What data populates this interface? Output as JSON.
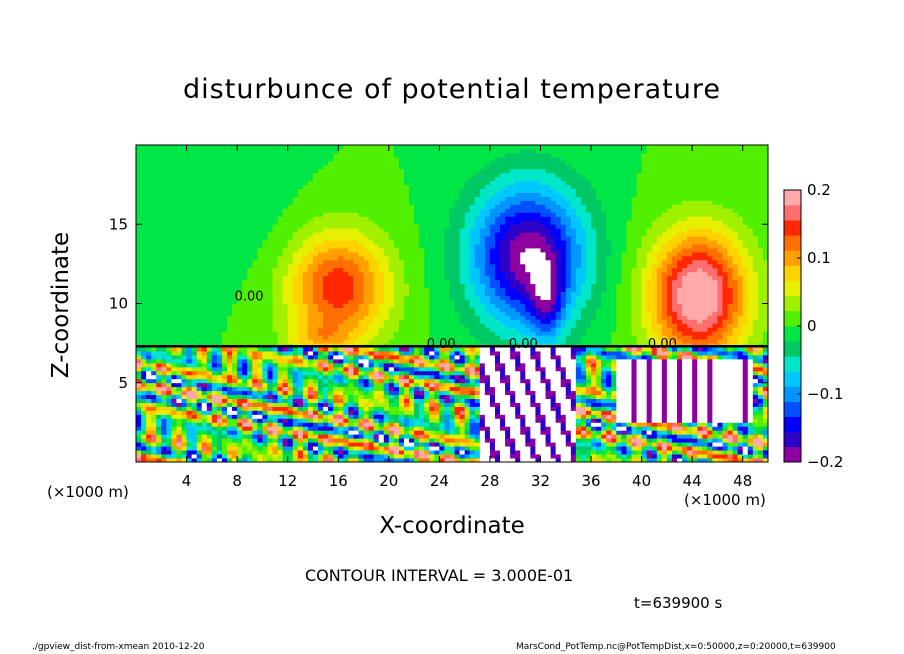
{
  "chart_data": {
    "type": "heatmap",
    "title": "disturbunce of potential temperature",
    "xlabel": "X-coordinate",
    "ylabel": "Z-coordinate",
    "x_unit_label": "(×1000 m)",
    "x_ticks": [
      4,
      8,
      12,
      16,
      20,
      24,
      28,
      32,
      36,
      40,
      44,
      48
    ],
    "y_ticks": [
      5,
      10,
      15
    ],
    "xlim": [
      0,
      50
    ],
    "ylim": [
      0,
      20
    ],
    "colorbar": {
      "ticks": [
        0.2,
        0.1,
        0,
        -0.1,
        -0.2
      ],
      "tick_labels": [
        "0.2",
        "0.1",
        "0",
        "−0.1",
        "−0.2"
      ],
      "range": [
        -0.2,
        0.2
      ],
      "colors": [
        "#8c00a0",
        "#2f00c8",
        "#0000ff",
        "#0050ff",
        "#0096ff",
        "#00c8ff",
        "#00e6c8",
        "#00c864",
        "#00e646",
        "#50f000",
        "#a0f000",
        "#e6f000",
        "#ffd200",
        "#ffa000",
        "#ff6e00",
        "#ff2800",
        "#ff6e6e",
        "#ffaaaa"
      ]
    },
    "contour_labels": [
      {
        "x": 7.8,
        "z": 10.2,
        "text": "0.00"
      },
      {
        "x": 23.0,
        "z": 7.2,
        "text": "0.00"
      },
      {
        "x": 29.5,
        "z": 7.2,
        "text": "0.00"
      },
      {
        "x": 40.5,
        "z": 7.2,
        "text": "0.00"
      }
    ],
    "fields": [
      {
        "x": 16,
        "z": 11,
        "amp": 0.15,
        "sx": 4,
        "sz": 3.5
      },
      {
        "x": 14.5,
        "z": 7.8,
        "amp": 0.05,
        "sx": 2.5,
        "sz": 1
      },
      {
        "x": 31,
        "z": 13,
        "amp": -0.2,
        "sx": 4.5,
        "sz": 4.5
      },
      {
        "x": 32.5,
        "z": 10,
        "amp": -0.08,
        "sx": 1.3,
        "sz": 2.5
      },
      {
        "x": 44.5,
        "z": 10.5,
        "amp": 0.21,
        "sx": 3.8,
        "sz": 4
      },
      {
        "x": 9,
        "z": 15,
        "amp": -0.01,
        "sx": 5,
        "sz": 4
      }
    ]
  },
  "contour_interval": "CONTOUR INTERVAL = 3.000E-01",
  "time_label": "t=639900 s",
  "footer_left": "./gpview_dist-from-xmean  2010-12-20",
  "footer_right": "MarsCond_PotTemp.nc@PotTempDist,x=0:50000,z=0:20000,t=639900"
}
